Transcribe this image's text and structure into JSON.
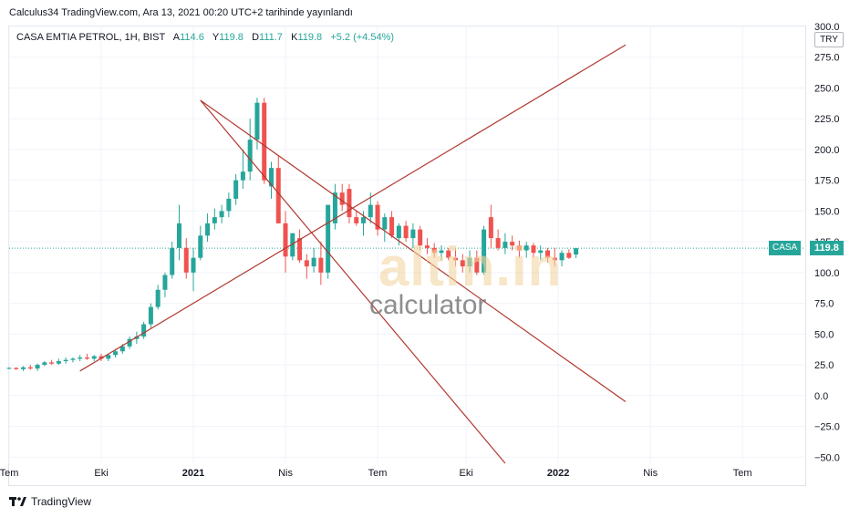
{
  "header": {
    "published": "Calculus34 TradingView.com, Ara 13, 2021 00:20 UTC+2 tarihinde yayınlandı"
  },
  "legend": {
    "title": "CASA EMTIA PETROL, 1H, BIST",
    "o_label": "A",
    "o_value": "114.6",
    "h_label": "Y",
    "h_value": "119.8",
    "l_label": "D",
    "l_value": "111.7",
    "c_label": "K",
    "c_value": "119.8",
    "change": "+5.2 (+4.54%)"
  },
  "currency": "TRY",
  "last_price": {
    "symbol": "CASA",
    "value": "119.8"
  },
  "footer": {
    "brand": "TradingView"
  },
  "watermark": {
    "brand": "altin.in",
    "sub": "calculator"
  },
  "colors": {
    "up": "#26a69a",
    "down": "#ef5350",
    "trend": "#b2382f",
    "grid": "#f0f3fa"
  },
  "chart_data": {
    "type": "candlestick",
    "title": "CASA EMTIA PETROL, 1H, BIST",
    "ylim": [
      -55,
      300
    ],
    "y_ticks": [
      300,
      275,
      250,
      225,
      200,
      175,
      150,
      125,
      100,
      75,
      50,
      25,
      0,
      -25,
      -50
    ],
    "y_tick_labels": [
      "300.0",
      "275.0",
      "250.0",
      "225.0",
      "200.0",
      "175.0",
      "150.0",
      "125.0",
      "100.0",
      "75.0",
      "50.0",
      "25.0",
      "0.0",
      "−25.0",
      "−50.0"
    ],
    "x_ticks": [
      {
        "label": "Tem",
        "i": 0
      },
      {
        "label": "Eki",
        "i": 13
      },
      {
        "label": "2021",
        "i": 26
      },
      {
        "label": "Nis",
        "i": 39
      },
      {
        "label": "Tem",
        "i": 52
      },
      {
        "label": "Eki",
        "i": 64.5
      },
      {
        "label": "2022",
        "i": 77.5
      },
      {
        "label": "Nis",
        "i": 90.5
      },
      {
        "label": "Tem",
        "i": 103.5
      }
    ],
    "x_range": [
      0,
      112
    ],
    "candles": [
      [
        22,
        23,
        21.5,
        22.5
      ],
      [
        22.5,
        23,
        21,
        21.5
      ],
      [
        21.5,
        24,
        20,
        23
      ],
      [
        23,
        25,
        21,
        22
      ],
      [
        22,
        26,
        20,
        25
      ],
      [
        25,
        28,
        24,
        27
      ],
      [
        27,
        29,
        25,
        26
      ],
      [
        26,
        30,
        25,
        28
      ],
      [
        28,
        31,
        26,
        29
      ],
      [
        29,
        31,
        27,
        30
      ],
      [
        30,
        33,
        28,
        31
      ],
      [
        31,
        34,
        29,
        30
      ],
      [
        30,
        33,
        28,
        32
      ],
      [
        32,
        34,
        28,
        30
      ],
      [
        30,
        34,
        28,
        33
      ],
      [
        33,
        38,
        31,
        36
      ],
      [
        36,
        42,
        34,
        40
      ],
      [
        40,
        48,
        38,
        46
      ],
      [
        46,
        52,
        42,
        48
      ],
      [
        48,
        60,
        46,
        58
      ],
      [
        58,
        75,
        55,
        72
      ],
      [
        72,
        90,
        70,
        86
      ],
      [
        86,
        100,
        80,
        98
      ],
      [
        98,
        125,
        95,
        120
      ],
      [
        120,
        155,
        110,
        140
      ],
      [
        120,
        128,
        95,
        100
      ],
      [
        100,
        120,
        85,
        112
      ],
      [
        112,
        138,
        110,
        130
      ],
      [
        130,
        148,
        125,
        140
      ],
      [
        140,
        152,
        135,
        145
      ],
      [
        145,
        155,
        140,
        150
      ],
      [
        150,
        165,
        145,
        160
      ],
      [
        160,
        180,
        155,
        175
      ],
      [
        175,
        200,
        168,
        182
      ],
      [
        182,
        225,
        175,
        208
      ],
      [
        208,
        242,
        200,
        238
      ],
      [
        238,
        242,
        172,
        175
      ],
      [
        170,
        190,
        160,
        185
      ],
      [
        185,
        195,
        140,
        140
      ],
      [
        140,
        150,
        100,
        113
      ],
      [
        113,
        130,
        110,
        132
      ],
      [
        128,
        135,
        108,
        110
      ],
      [
        110,
        115,
        95,
        105
      ],
      [
        105,
        120,
        100,
        112
      ],
      [
        112,
        125,
        90,
        100
      ],
      [
        100,
        155,
        95,
        155
      ],
      [
        140,
        172,
        135,
        165
      ],
      [
        165,
        172,
        150,
        155
      ],
      [
        168,
        172,
        140,
        145
      ],
      [
        145,
        150,
        138,
        140
      ],
      [
        140,
        150,
        130,
        145
      ],
      [
        145,
        165,
        140,
        155
      ],
      [
        155,
        158,
        130,
        135
      ],
      [
        135,
        148,
        125,
        145
      ],
      [
        145,
        150,
        128,
        130
      ],
      [
        128,
        140,
        122,
        138
      ],
      [
        138,
        142,
        125,
        128
      ],
      [
        128,
        140,
        120,
        135
      ],
      [
        135,
        138,
        118,
        122
      ],
      [
        122,
        128,
        115,
        120
      ],
      [
        120,
        124,
        112,
        116
      ],
      [
        116,
        122,
        110,
        118
      ],
      [
        118,
        120,
        110,
        112
      ],
      [
        112,
        120,
        105,
        110
      ],
      [
        110,
        115,
        100,
        105
      ],
      [
        105,
        118,
        100,
        112
      ],
      [
        112,
        118,
        98,
        100
      ],
      [
        100,
        138,
        98,
        135
      ],
      [
        145,
        155,
        120,
        128
      ],
      [
        128,
        135,
        118,
        120
      ],
      [
        120,
        132,
        115,
        125
      ],
      [
        125,
        130,
        118,
        122
      ],
      [
        122,
        126,
        112,
        118
      ],
      [
        118,
        125,
        112,
        122
      ],
      [
        122,
        124,
        112,
        116
      ],
      [
        116,
        122,
        110,
        118
      ],
      [
        118,
        120,
        108,
        112
      ],
      [
        112,
        120,
        105,
        110
      ],
      [
        110,
        118,
        105,
        116
      ],
      [
        116,
        119,
        111,
        112
      ],
      [
        114.6,
        119.8,
        111.7,
        119.8
      ]
    ],
    "trend_lines": [
      {
        "from": [
          10,
          20
        ],
        "to": [
          87,
          285
        ]
      },
      {
        "from": [
          27,
          240
        ],
        "to": [
          87,
          -5
        ]
      },
      {
        "from": [
          27,
          240
        ],
        "to": [
          70,
          -55
        ]
      }
    ],
    "last_value_line": 119.8
  }
}
